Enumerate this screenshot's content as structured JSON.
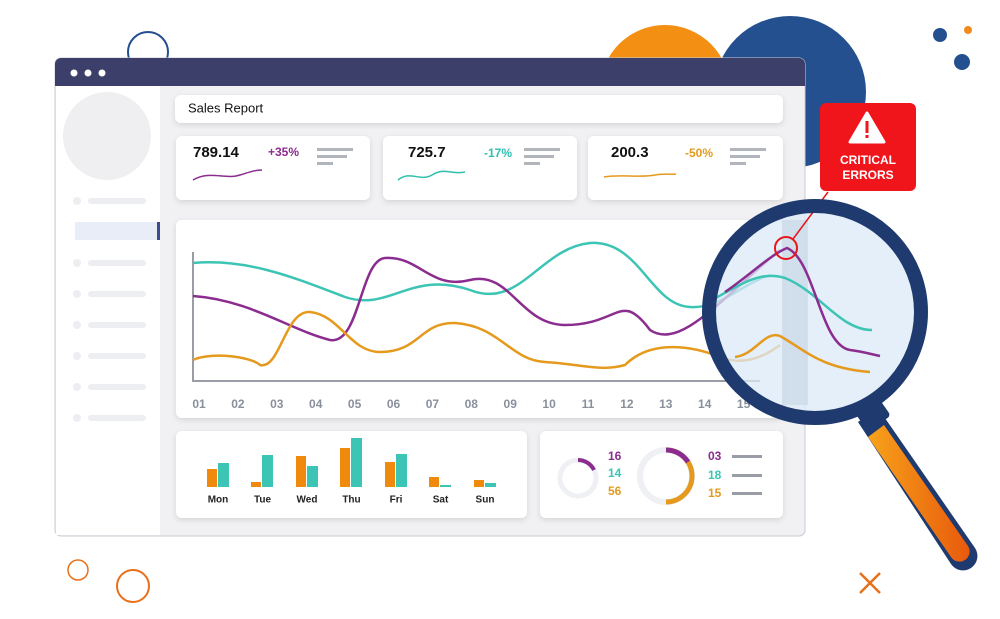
{
  "header": {
    "title": "Sales Report"
  },
  "kpis": [
    {
      "value": "789.14",
      "change": "+35%"
    },
    {
      "value": "725.7",
      "change": "-17%"
    },
    {
      "value": "200.3",
      "change": "-50%"
    }
  ],
  "line_chart": {
    "x_labels": [
      "01",
      "02",
      "03",
      "04",
      "05",
      "06",
      "07",
      "08",
      "09",
      "10",
      "11",
      "12",
      "13",
      "14",
      "15"
    ]
  },
  "bar_chart": {
    "days": [
      "Mon",
      "Tue",
      "Wed",
      "Thu",
      "Fri",
      "Sat",
      "Sun"
    ]
  },
  "stats": {
    "left": [
      "16",
      "14",
      "56"
    ],
    "right": [
      "03",
      "18",
      "15"
    ]
  },
  "alert": {
    "lines": [
      "CRITICAL",
      "ERRORS"
    ]
  }
}
